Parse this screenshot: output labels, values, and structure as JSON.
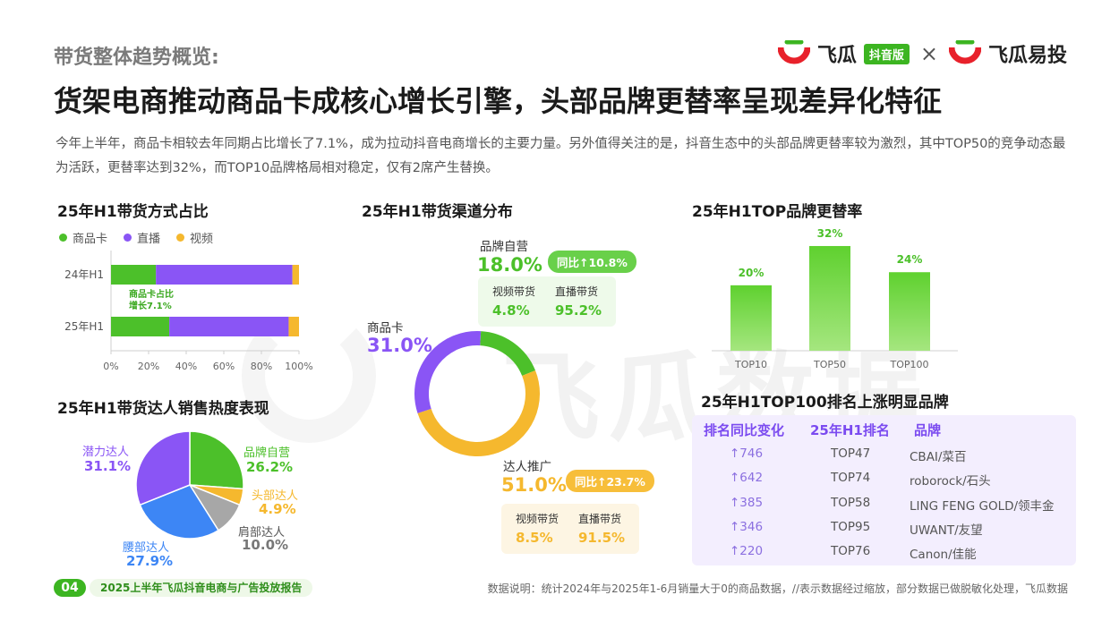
{
  "header": {
    "kicker": "带货整体趋势概览:",
    "headline": "货架电商推动商品卡成核心增长引擎，头部品牌更替率呈现差异化特征",
    "intro": "今年上半年，商品卡相较去年同期占比增长了7.1%，成为拉动抖音电商增长的主要力量。另外值得关注的是，抖音生态中的头部品牌更替率较为激烈，其中TOP50的竞争动态最为活跃，更替率达到32%，而TOP10品牌格局相对稳定，仅有2席产生替换。"
  },
  "logos": {
    "left_name": "飞瓜",
    "left_badge": "抖音版",
    "separator": "×",
    "right_name": "飞瓜易投"
  },
  "watermark": "飞瓜数据",
  "colors": {
    "green": "#4cc02a",
    "purple": "#8a55f5",
    "orange": "#f5b82e",
    "blue": "#3d86f5",
    "gray": "#a7a7a7"
  },
  "sections": {
    "mode_share": "25年H1带货方式占比",
    "channel": "25年H1带货渠道分布",
    "turnover": "25年H1TOP品牌更替率",
    "influencer": "25年H1带货达人销售热度表现",
    "top100": "25年H1TOP100排名上涨明显品牌"
  },
  "chart_data": [
    {
      "type": "bar",
      "orientation": "horizontal",
      "stacked": true,
      "title": "25年H1带货方式占比",
      "categories": [
        "24年H1",
        "25年H1"
      ],
      "series": [
        {
          "name": "商品卡",
          "values": [
            23.9,
            31.0
          ],
          "color": "#4cc02a"
        },
        {
          "name": "直播",
          "values": [
            72.6,
            63.5
          ],
          "color": "#8a55f5"
        },
        {
          "name": "视频",
          "values": [
            3.5,
            5.5
          ],
          "color": "#f5b82e"
        }
      ],
      "xticks": [
        "0%",
        "20%",
        "40%",
        "60%",
        "80%",
        "100%"
      ],
      "xlim": [
        0,
        100
      ],
      "legend": "top-left",
      "annotation": [
        "商品卡占比",
        "增长7.1%"
      ]
    },
    {
      "type": "pie",
      "donut": true,
      "title": "25年H1带货渠道分布",
      "slices": [
        {
          "name": "品牌自营",
          "value": 18.0,
          "label": "18.0%",
          "color": "#4cc02a"
        },
        {
          "name": "达人推广",
          "value": 51.0,
          "label": "51.0%",
          "color": "#f5b82e"
        },
        {
          "name": "商品卡",
          "value": 31.0,
          "label": "31.0%",
          "color": "#8a55f5"
        }
      ],
      "yoy": {
        "brand": "同比↑10.8%",
        "talent": "同比↑23.7%"
      },
      "sub": {
        "brand": {
          "video_label": "视频带货",
          "video": "4.8%",
          "live_label": "直播带货",
          "live": "95.2%"
        },
        "talent": {
          "video_label": "视频带货",
          "video": "8.5%",
          "live_label": "直播带货",
          "live": "91.5%"
        }
      }
    },
    {
      "type": "bar",
      "title": "25年H1TOP品牌更替率",
      "categories": [
        "TOP10",
        "TOP50",
        "TOP100"
      ],
      "values": [
        20,
        32,
        24
      ],
      "labels": [
        "20%",
        "32%",
        "24%"
      ],
      "ylim": [
        0,
        35
      ]
    },
    {
      "type": "pie",
      "title": "25年H1带货达人销售热度表现",
      "slices": [
        {
          "name": "品牌自营",
          "value": 26.2,
          "label": "26.2%",
          "color": "#4cc02a"
        },
        {
          "name": "头部达人",
          "value": 4.9,
          "label": "4.9%",
          "color": "#f5b82e"
        },
        {
          "name": "肩部达人",
          "value": 10.0,
          "label": "10.0%",
          "color": "#a7a7a7"
        },
        {
          "name": "腰部达人",
          "value": 27.9,
          "label": "27.9%",
          "color": "#3d86f5"
        },
        {
          "name": "潜力达人",
          "value": 31.1,
          "label": "31.1%",
          "color": "#8a55f5"
        }
      ]
    },
    {
      "type": "table",
      "title": "25年H1TOP100排名上涨明显品牌",
      "columns": [
        "排名同比变化",
        "25年H1排名",
        "品牌"
      ],
      "rows": [
        [
          "↑746",
          "TOP47",
          "CBAI/菜百"
        ],
        [
          "↑642",
          "TOP74",
          "roborock/石头"
        ],
        [
          "↑385",
          "TOP58",
          "LING FENG GOLD/领丰金"
        ],
        [
          "↑346",
          "TOP95",
          "UWANT/友望"
        ],
        [
          "↑220",
          "TOP76",
          "Canon/佳能"
        ]
      ]
    }
  ],
  "footer": {
    "page": "04",
    "report": "2025上半年飞瓜抖音电商与广告投放报告",
    "note": "数据说明：统计2024年与2025年1-6月销量大于0的商品数据，//表示数据经过缩放，部分数据已做脱敏化处理，飞瓜数据"
  }
}
